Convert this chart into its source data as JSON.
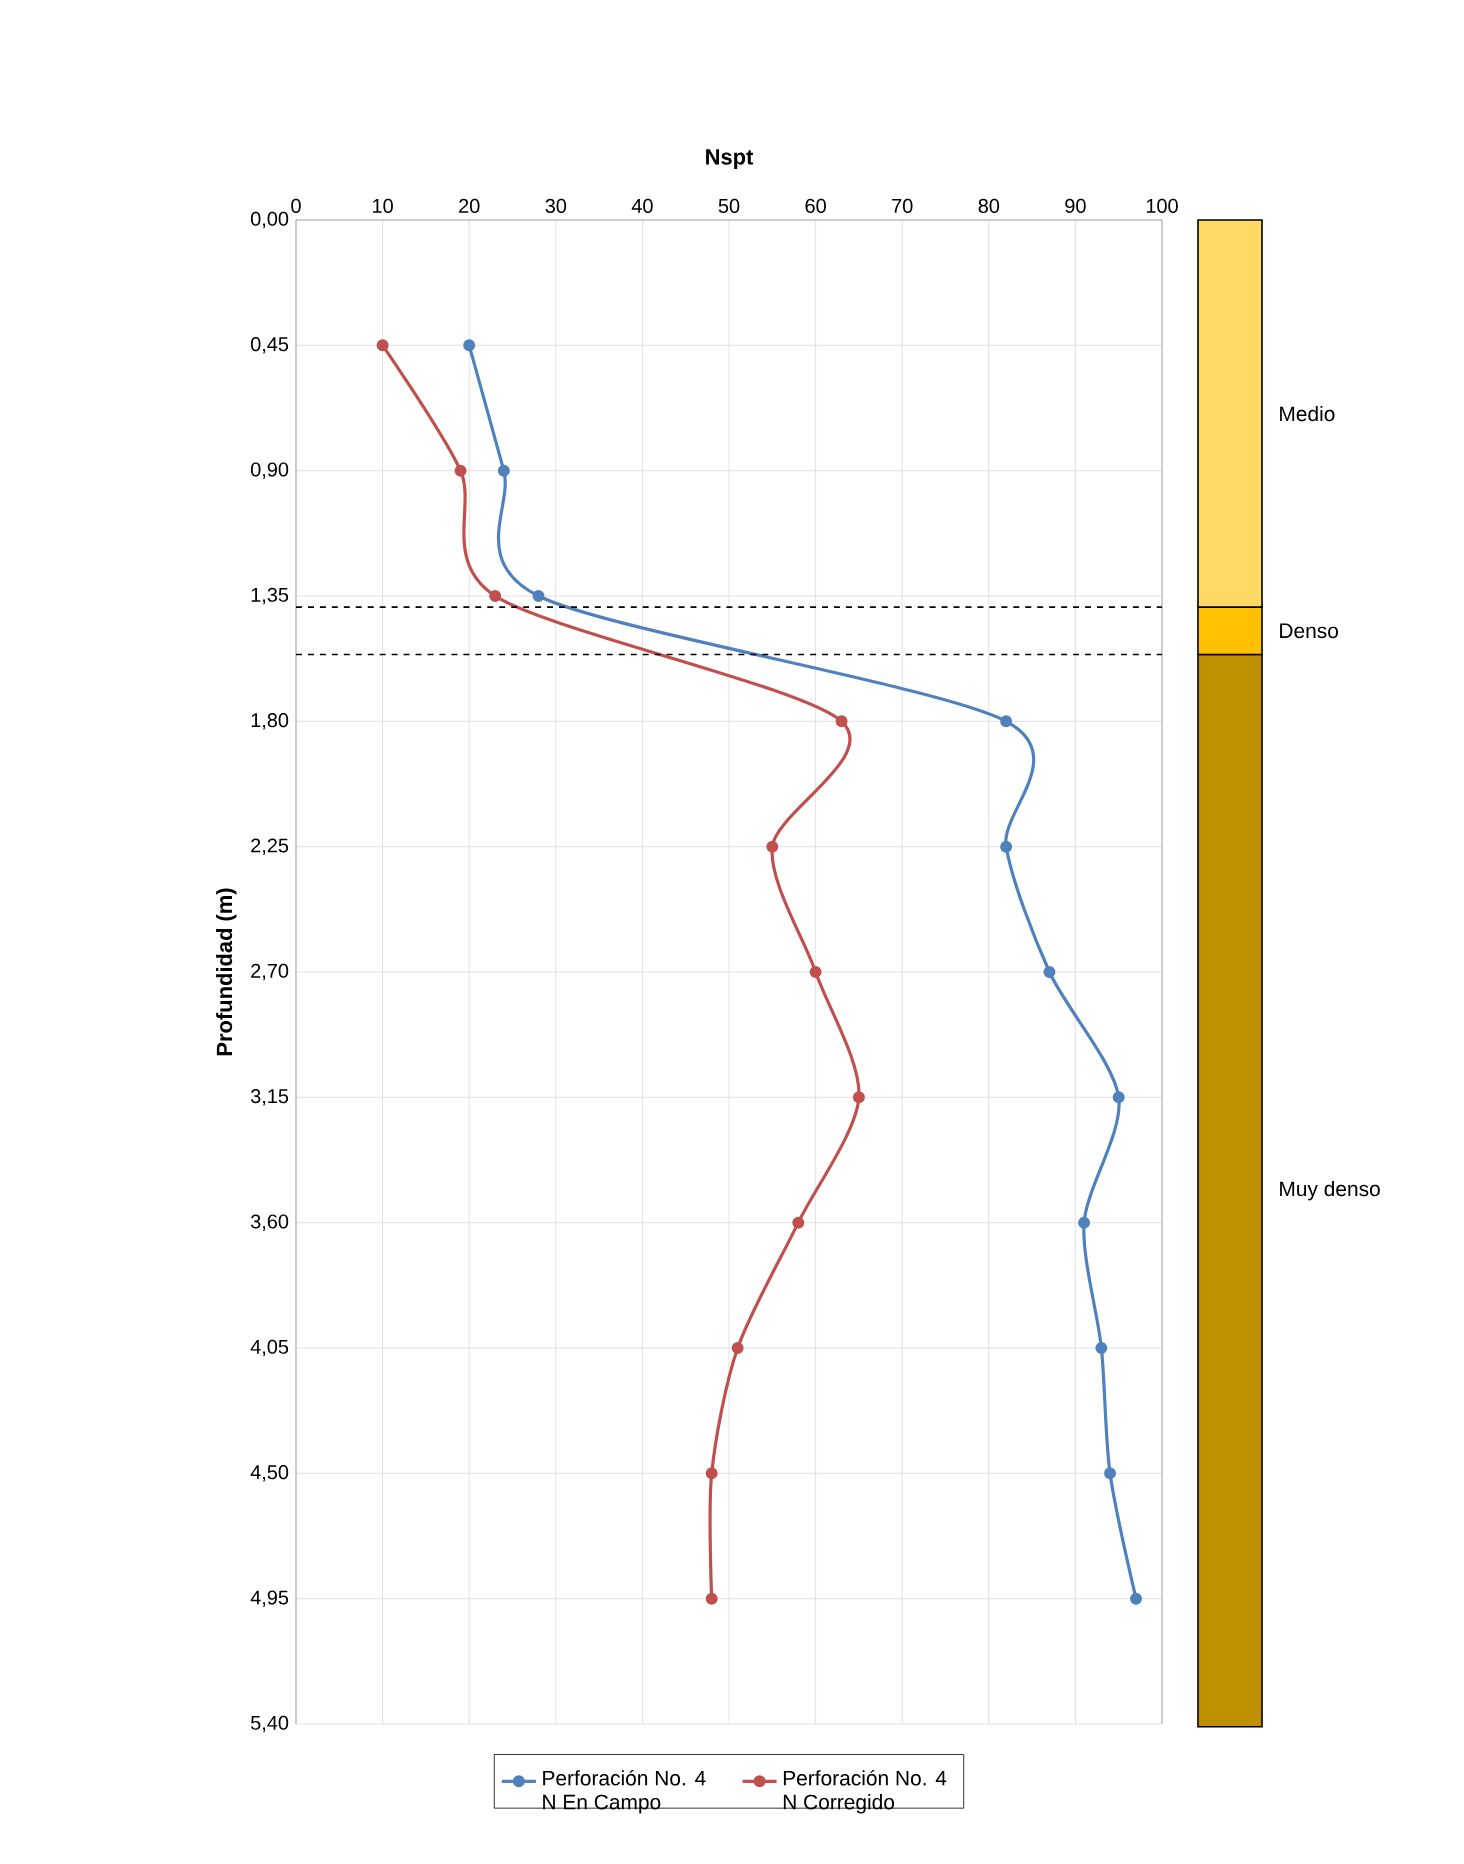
{
  "chart_data": [
    {
      "type": "line",
      "xlabel": "Nspt",
      "ylabel": "Profundidad (m)",
      "x": [
        0.45,
        0.9,
        1.35,
        1.8,
        2.25,
        2.7,
        3.15,
        3.6,
        4.05,
        4.5,
        4.95
      ],
      "series": [
        {
          "name": "Perforación No. 4 N En Campo",
          "color": "#4f81bd",
          "values": [
            20,
            24,
            28,
            82,
            82,
            87,
            95,
            91,
            93,
            94,
            97
          ]
        },
        {
          "name": "Perforación No. 4 N Corregido",
          "color": "#c0504d",
          "values": [
            10,
            19,
            23,
            63,
            55,
            60,
            65,
            58,
            51,
            48,
            48
          ]
        }
      ],
      "orientation": "horizontal",
      "xlim": [
        0,
        100
      ],
      "xticks": [
        0,
        10,
        20,
        30,
        40,
        50,
        60,
        70,
        80,
        90,
        100
      ],
      "ylim": [
        5.4,
        0
      ],
      "yticks": [
        {
          "value": 0,
          "label": "0,00"
        },
        {
          "value": 0.45,
          "label": "0,45"
        },
        {
          "value": 0.9,
          "label": "0,90"
        },
        {
          "value": 1.35,
          "label": "1,35"
        },
        {
          "value": 1.8,
          "label": "1,80"
        },
        {
          "value": 2.25,
          "label": "2,25"
        },
        {
          "value": 2.7,
          "label": "2,70"
        },
        {
          "value": 3.15,
          "label": "3,15"
        },
        {
          "value": 3.6,
          "label": "3,60"
        },
        {
          "value": 4.05,
          "label": "4,05"
        },
        {
          "value": 4.5,
          "label": "4,50"
        },
        {
          "value": 4.95,
          "label": "4,95"
        },
        {
          "value": 5.4,
          "label": "5,40"
        }
      ],
      "ref_lines": [
        {
          "axis": "y",
          "value": 1.39,
          "color": "#000000",
          "line_style": "dashed"
        },
        {
          "axis": "y",
          "value": 1.56,
          "color": "#000000",
          "line_style": "dashed"
        }
      ],
      "grid": true,
      "legend": "bottom",
      "marker": "circle",
      "line_style": "solid"
    },
    {
      "type": "bar",
      "stacked": true,
      "categories": [
        null
      ],
      "series": [
        {
          "name": "Medio",
          "color": "#ffd966",
          "values": [
            1.39
          ]
        },
        {
          "name": "Denso",
          "color": "#ffc000",
          "values": [
            0.17
          ]
        },
        {
          "name": "Muy denso",
          "color": "#bf9000",
          "values": [
            3.85
          ]
        }
      ],
      "ylim": [
        5.4,
        0
      ],
      "tick_labels": false
    }
  ]
}
